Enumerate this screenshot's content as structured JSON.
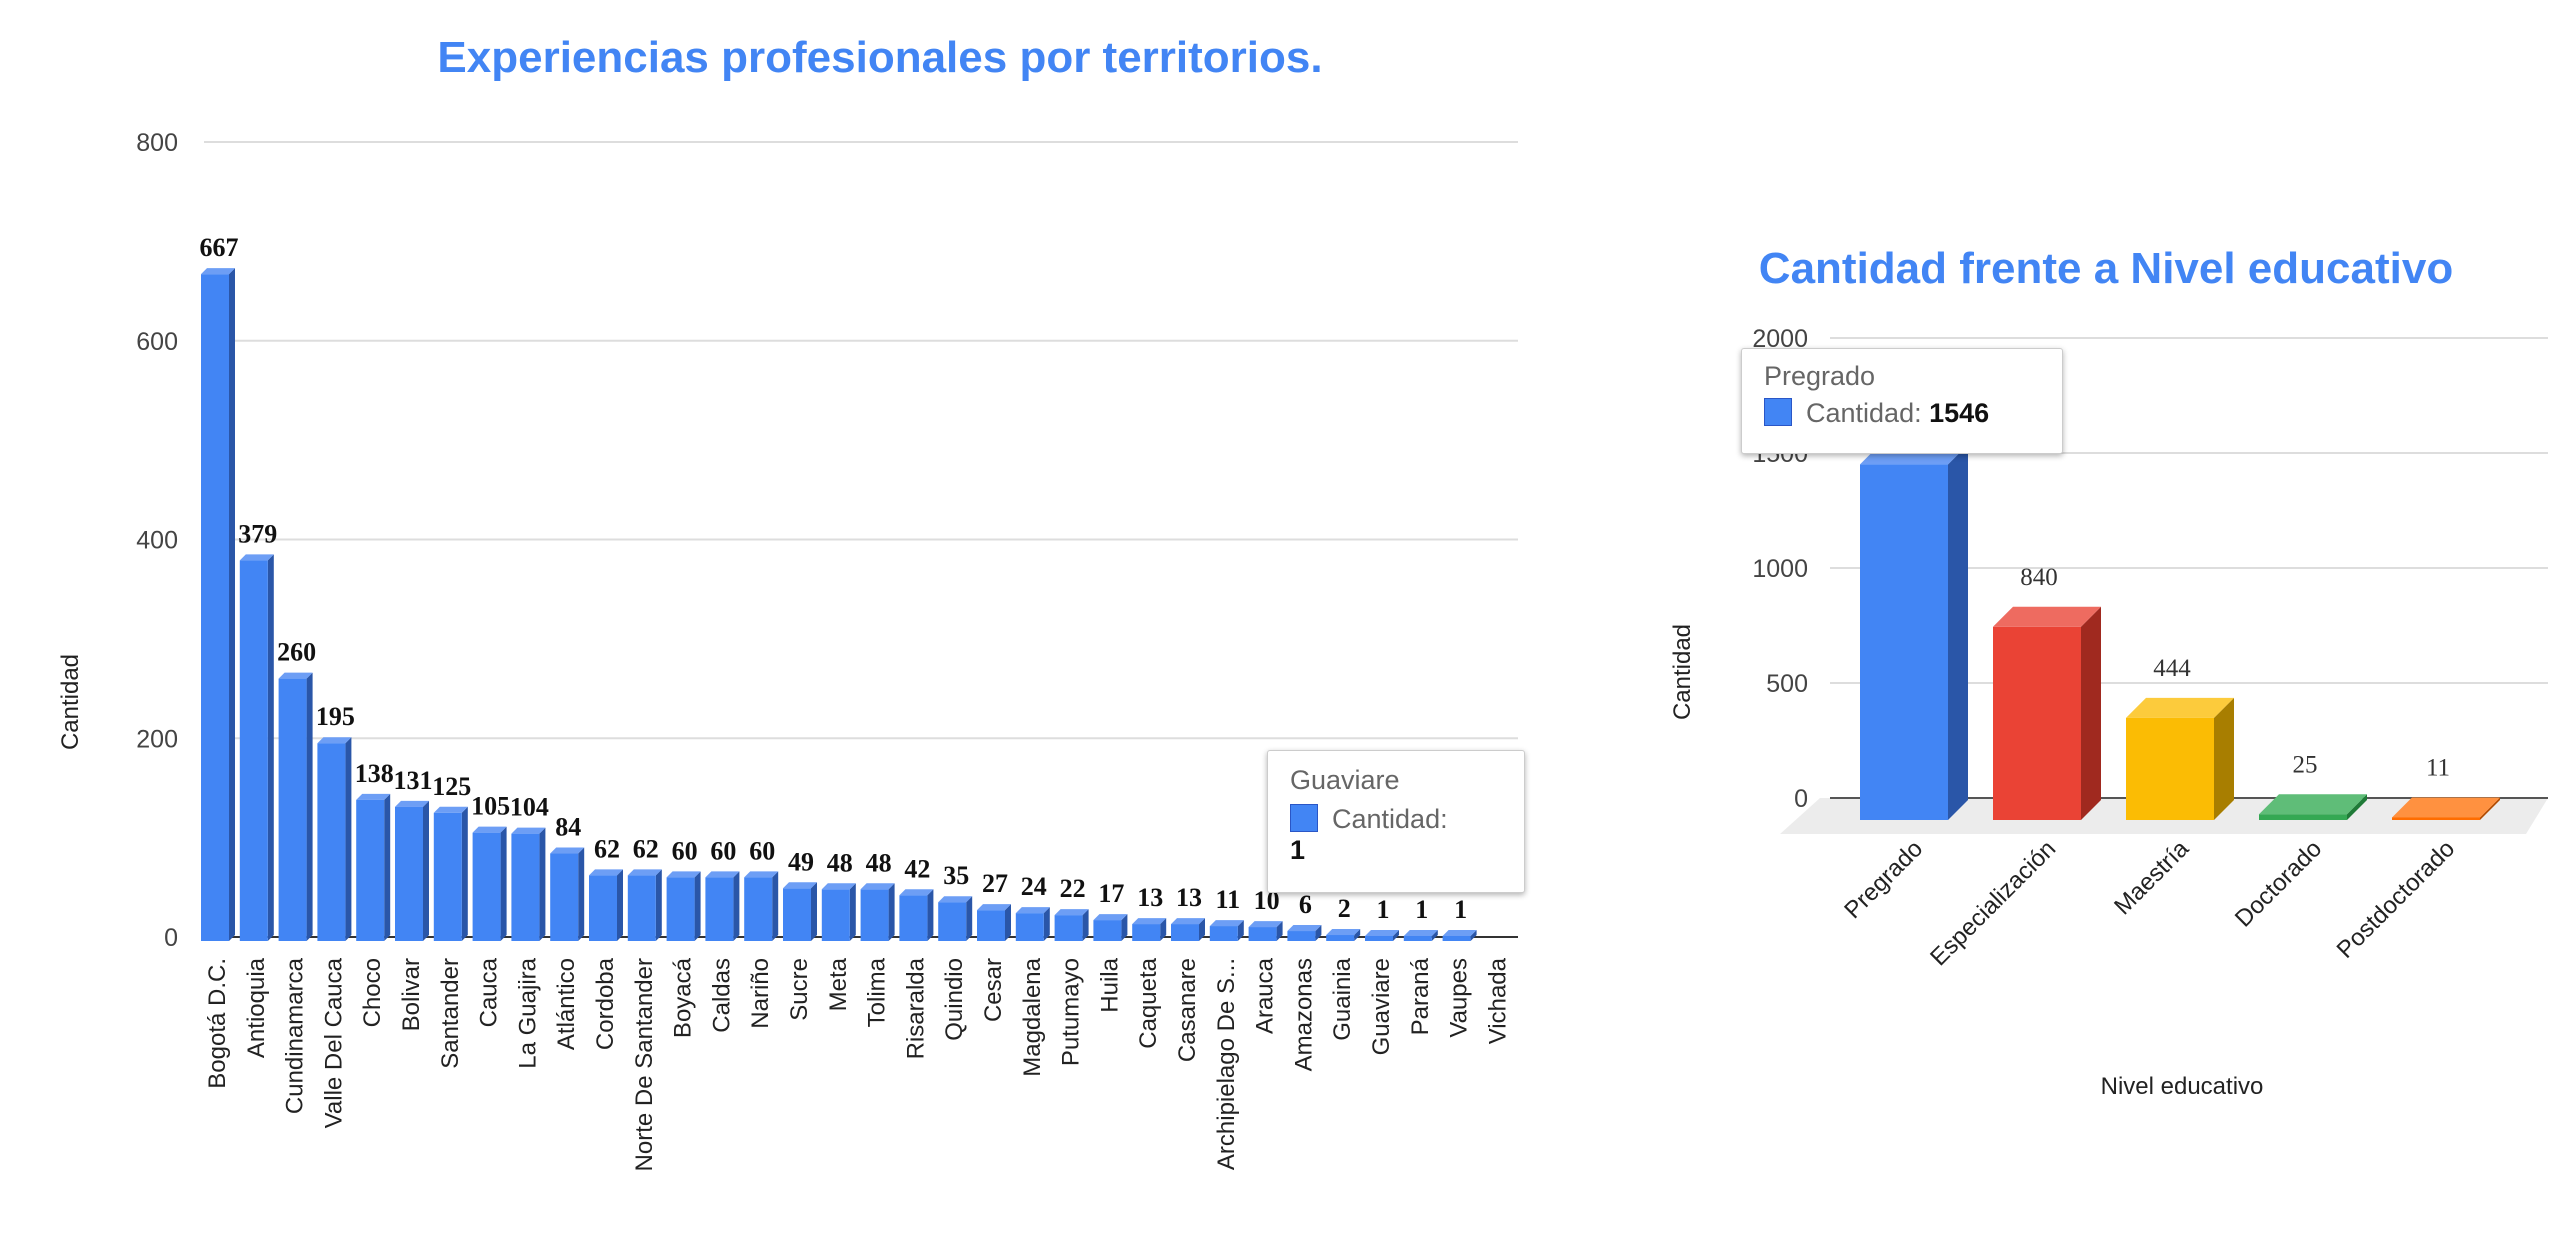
{
  "chart_data": [
    {
      "type": "bar",
      "title": "Experiencias profesionales por territorios.",
      "xlabel": "",
      "ylabel": "Cantidad",
      "ylim": [
        0,
        800
      ],
      "yticks": [
        0,
        200,
        400,
        600,
        800
      ],
      "grid": true,
      "color": "#4285f4",
      "categories": [
        "Bogotá D.C.",
        "Antioquia",
        "Cundinamarca",
        "Valle Del Cauca",
        "Choco",
        "Bolivar",
        "Santander",
        "Cauca",
        "La Guajira",
        "Atlántico",
        "Cordoba",
        "Norte De Santander",
        "Boyacá",
        "Caldas",
        "Nariño",
        "Sucre",
        "Meta",
        "Tolima",
        "Risaralda",
        "Quindio",
        "Cesar",
        "Magdalena",
        "Putumayo",
        "Huila",
        "Caqueta",
        "Casanare",
        "Archipielago De S...",
        "Arauca",
        "Amazonas",
        "Guainia",
        "Guaviare",
        "Paraná",
        "Vaupes",
        "Vichada"
      ],
      "values": [
        667,
        379,
        260,
        195,
        138,
        131,
        125,
        105,
        104,
        84,
        62,
        62,
        60,
        60,
        60,
        49,
        48,
        48,
        42,
        35,
        27,
        24,
        22,
        17,
        13,
        13,
        11,
        10,
        6,
        2,
        1,
        1,
        1,
        null
      ],
      "tooltip": {
        "category": "Guaviare",
        "series": "Cantidad:",
        "value": "1"
      }
    },
    {
      "type": "bar",
      "title": "Cantidad frente a Nivel educativo",
      "xlabel": "Nivel educativo",
      "ylabel": "Cantidad",
      "ylim": [
        0,
        2000
      ],
      "yticks": [
        0,
        500,
        1000,
        1500,
        2000
      ],
      "grid": true,
      "categories": [
        "Pregrado",
        "Especialización",
        "Maestría",
        "Doctorado",
        "Postdoctorado"
      ],
      "values": [
        1546,
        840,
        444,
        25,
        11
      ],
      "colors": [
        "#4285f4",
        "#ea4335",
        "#fbbc04",
        "#34a853",
        "#ff6d01"
      ],
      "side_colors": [
        "#2a56a8",
        "#a0291f",
        "#a87e00",
        "#1f7a37",
        "#b04a00"
      ],
      "top_colors": [
        "#6d9ef5",
        "#ee6b60",
        "#fccb3c",
        "#5fbd78",
        "#ff9140"
      ],
      "tooltip": {
        "category": "Pregrado",
        "series": "Cantidad:",
        "value": "1546"
      }
    }
  ]
}
